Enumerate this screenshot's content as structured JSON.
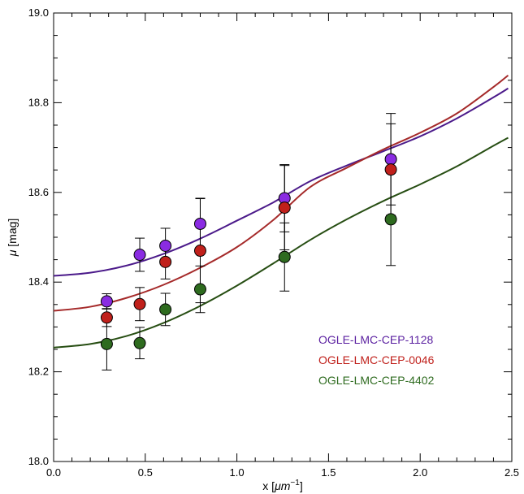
{
  "chart_data": {
    "type": "scatter",
    "title": "",
    "xlabel_main": "x [",
    "xlabel_unit": "μm",
    "xlabel_exp": "−1",
    "xlabel_close": "]",
    "ylabel_symbol": "μ",
    "ylabel_unit": " [mag]",
    "xlim": [
      0.0,
      2.5
    ],
    "ylim": [
      18.0,
      19.0
    ],
    "x_ticks": [
      0.0,
      0.5,
      1.0,
      1.5,
      2.0,
      2.5
    ],
    "x_tick_labels": [
      "0.0",
      "0.5",
      "1.0",
      "1.5",
      "2.0",
      "2.5"
    ],
    "y_ticks": [
      18.0,
      18.2,
      18.4,
      18.6,
      18.8,
      19.0
    ],
    "y_tick_labels": [
      "18.0",
      "18.2",
      "18.4",
      "18.6",
      "18.8",
      "19.0"
    ],
    "grid": false,
    "legend_position": "bottom-right",
    "series": [
      {
        "name": "OGLE-LMC-CEP-1128",
        "color": "#8a2be2",
        "line_color": "#4b1a8a",
        "points": [
          {
            "x": 0.29,
            "y": 18.357,
            "err": 0.017
          },
          {
            "x": 0.47,
            "y": 18.461,
            "err": 0.037
          },
          {
            "x": 0.61,
            "y": 18.481,
            "err": 0.039
          },
          {
            "x": 0.8,
            "y": 18.53,
            "err": 0.057
          },
          {
            "x": 1.26,
            "y": 18.587,
            "err": 0.075
          },
          {
            "x": 1.84,
            "y": 18.674,
            "err": 0.102
          }
        ],
        "curve": [
          [
            0.0,
            18.414
          ],
          [
            0.2,
            18.421
          ],
          [
            0.4,
            18.437
          ],
          [
            0.6,
            18.463
          ],
          [
            0.8,
            18.497
          ],
          [
            1.0,
            18.537
          ],
          [
            1.2,
            18.578
          ],
          [
            1.4,
            18.625
          ],
          [
            1.6,
            18.66
          ],
          [
            1.8,
            18.692
          ],
          [
            2.0,
            18.725
          ],
          [
            2.2,
            18.765
          ],
          [
            2.4,
            18.812
          ],
          [
            2.48,
            18.832
          ]
        ]
      },
      {
        "name": "OGLE-LMC-CEP-0046",
        "color": "#c0201b",
        "line_color": "#a52a2a",
        "points": [
          {
            "x": 0.29,
            "y": 18.321,
            "err": 0.02
          },
          {
            "x": 0.47,
            "y": 18.351,
            "err": 0.037
          },
          {
            "x": 0.61,
            "y": 18.445,
            "err": 0.038
          },
          {
            "x": 0.8,
            "y": 18.47,
            "err": 0.116
          },
          {
            "x": 1.26,
            "y": 18.566,
            "err": 0.094
          },
          {
            "x": 1.84,
            "y": 18.651,
            "err": 0.102
          }
        ],
        "curve": [
          [
            0.0,
            18.336
          ],
          [
            0.2,
            18.345
          ],
          [
            0.4,
            18.365
          ],
          [
            0.6,
            18.394
          ],
          [
            0.8,
            18.432
          ],
          [
            1.0,
            18.478
          ],
          [
            1.2,
            18.539
          ],
          [
            1.4,
            18.612
          ],
          [
            1.6,
            18.655
          ],
          [
            1.8,
            18.696
          ],
          [
            2.0,
            18.733
          ],
          [
            2.2,
            18.776
          ],
          [
            2.4,
            18.835
          ],
          [
            2.48,
            18.861
          ]
        ]
      },
      {
        "name": "OGLE-LMC-CEP-4402",
        "color": "#2e6b1f",
        "line_color": "#274e13",
        "points": [
          {
            "x": 0.29,
            "y": 18.262,
            "err": 0.058
          },
          {
            "x": 0.47,
            "y": 18.264,
            "err": 0.035
          },
          {
            "x": 0.61,
            "y": 18.339,
            "err": 0.036
          },
          {
            "x": 0.8,
            "y": 18.384,
            "err": 0.052
          },
          {
            "x": 1.26,
            "y": 18.456,
            "err": 0.076
          },
          {
            "x": 1.84,
            "y": 18.54,
            "err": 0.103
          }
        ],
        "curve": [
          [
            0.0,
            18.254
          ],
          [
            0.2,
            18.262
          ],
          [
            0.4,
            18.28
          ],
          [
            0.6,
            18.309
          ],
          [
            0.8,
            18.347
          ],
          [
            1.0,
            18.392
          ],
          [
            1.2,
            18.442
          ],
          [
            1.4,
            18.494
          ],
          [
            1.6,
            18.54
          ],
          [
            1.8,
            18.581
          ],
          [
            2.0,
            18.618
          ],
          [
            2.2,
            18.658
          ],
          [
            2.4,
            18.704
          ],
          [
            2.48,
            18.722
          ]
        ]
      }
    ]
  }
}
